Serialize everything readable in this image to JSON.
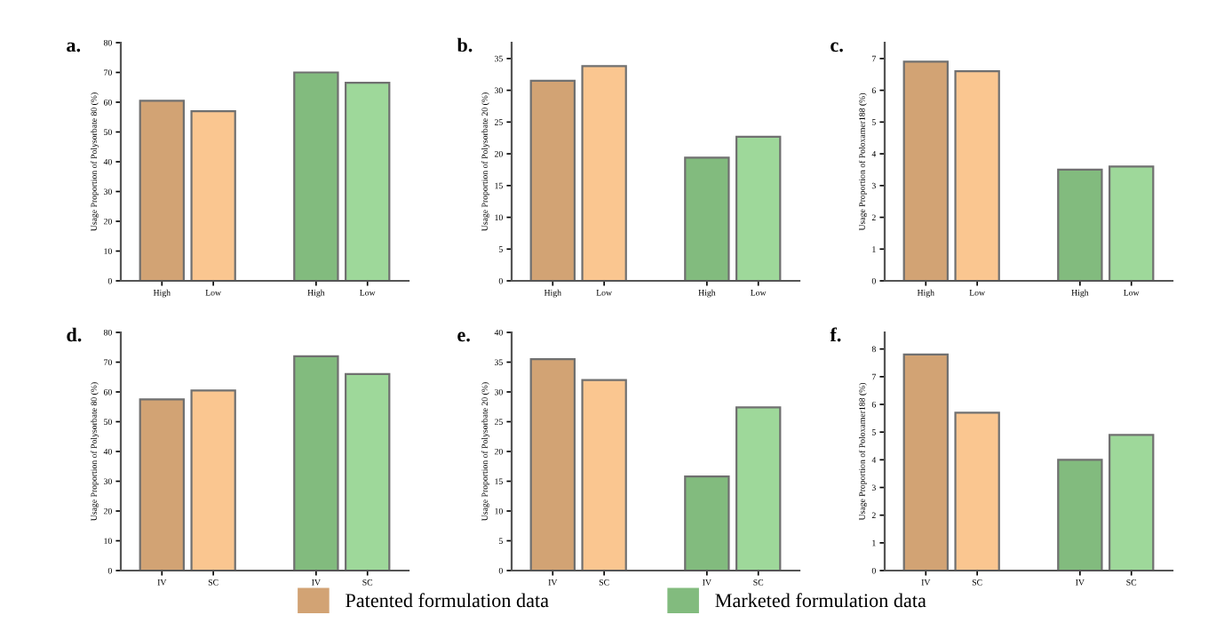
{
  "chart_data": [
    {
      "type": "bar",
      "title": "a.",
      "ylabel": "Usage Proportion of Polysorbate 80 (%)",
      "categories": [
        "High",
        "Low",
        null,
        "High",
        "Low"
      ],
      "ylim": [
        0,
        80
      ],
      "yticks": [
        0,
        10,
        20,
        30,
        40,
        50,
        60,
        70,
        80
      ],
      "legend": "bottom",
      "series": [
        {
          "name": "Patented formulation data",
          "colors": [
            "#d2a374",
            "#fac690",
            null,
            null,
            null
          ],
          "values": [
            60.5,
            57,
            null,
            null,
            null
          ]
        },
        {
          "name": "Marketed formulation data",
          "colors": [
            null,
            null,
            null,
            "#82bb7e",
            "#9ed89a"
          ],
          "values": [
            null,
            null,
            null,
            70,
            66.5
          ]
        }
      ]
    },
    {
      "type": "bar",
      "title": "b.",
      "ylabel": "Usage Proportion of Polysorbate 20 (%)",
      "categories": [
        "High",
        "Low",
        null,
        "High",
        "Low"
      ],
      "ylim": [
        0,
        37.5
      ],
      "yticks": [
        0,
        5,
        10,
        15,
        20,
        25,
        30,
        35
      ],
      "series": [
        {
          "colors": [
            "#d2a374",
            "#fac690",
            null,
            null,
            null
          ],
          "values": [
            31.5,
            33.8,
            null,
            null,
            null
          ]
        },
        {
          "colors": [
            null,
            null,
            null,
            "#82bb7e",
            "#9ed89a"
          ],
          "values": [
            null,
            null,
            null,
            19.4,
            22.7
          ]
        }
      ]
    },
    {
      "type": "bar",
      "title": "c.",
      "ylabel": "Usage Proportion of Poloxamer188 (%)",
      "categories": [
        "High",
        "Low",
        null,
        "High",
        "Low"
      ],
      "ylim": [
        0,
        7.5
      ],
      "yticks": [
        0,
        1,
        2,
        3,
        4,
        5,
        6,
        7
      ],
      "series": [
        {
          "colors": [
            "#d2a374",
            "#fac690",
            null,
            null,
            null
          ],
          "values": [
            6.9,
            6.6,
            null,
            null,
            null
          ]
        },
        {
          "colors": [
            null,
            null,
            null,
            "#82bb7e",
            "#9ed89a"
          ],
          "values": [
            null,
            null,
            null,
            3.5,
            3.6
          ]
        }
      ]
    },
    {
      "type": "bar",
      "title": "d.",
      "ylabel": "Usage Proportion of Polysorbate 80 (%)",
      "categories": [
        "IV",
        "SC",
        null,
        "IV",
        "SC"
      ],
      "ylim": [
        0,
        80
      ],
      "yticks": [
        0,
        10,
        20,
        30,
        40,
        50,
        60,
        70,
        80
      ],
      "series": [
        {
          "colors": [
            "#d2a374",
            "#fac690",
            null,
            null,
            null
          ],
          "values": [
            57.5,
            60.5,
            null,
            null,
            null
          ]
        },
        {
          "colors": [
            null,
            null,
            null,
            "#82bb7e",
            "#9ed89a"
          ],
          "values": [
            null,
            null,
            null,
            72,
            66
          ]
        }
      ]
    },
    {
      "type": "bar",
      "title": "e.",
      "ylabel": "Usage Proportion of Polysorbate 20 (%)",
      "categories": [
        "IV",
        "SC",
        null,
        "IV",
        "SC"
      ],
      "ylim": [
        0,
        40
      ],
      "yticks": [
        0,
        5,
        10,
        15,
        20,
        25,
        30,
        35,
        40
      ],
      "series": [
        {
          "colors": [
            "#d2a374",
            "#fac690",
            null,
            null,
            null
          ],
          "values": [
            35.5,
            32,
            null,
            null,
            null
          ]
        },
        {
          "colors": [
            null,
            null,
            null,
            "#82bb7e",
            "#9ed89a"
          ],
          "values": [
            null,
            null,
            null,
            15.8,
            27.4
          ]
        }
      ]
    },
    {
      "type": "bar",
      "title": "f.",
      "ylabel": "Usage Proportion of Poloxamer188 (%)",
      "categories": [
        "IV",
        "SC",
        null,
        "IV",
        "SC"
      ],
      "ylim": [
        0,
        8.6
      ],
      "yticks": [
        0,
        1,
        2,
        3,
        4,
        5,
        6,
        7,
        8
      ],
      "series": [
        {
          "colors": [
            "#d2a374",
            "#fac690",
            null,
            null,
            null
          ],
          "values": [
            7.8,
            5.7,
            null,
            null,
            null
          ]
        },
        {
          "colors": [
            null,
            null,
            null,
            "#82bb7e",
            "#9ed89a"
          ],
          "values": [
            null,
            null,
            null,
            4.0,
            4.9
          ]
        }
      ]
    }
  ]
}
